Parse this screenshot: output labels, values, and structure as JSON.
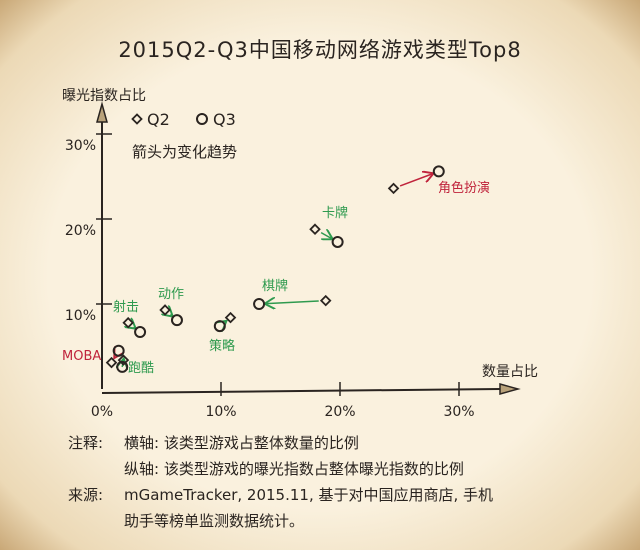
{
  "title": "2015Q2-Q3中国移动网络游戏类型Top8",
  "chart_data": {
    "type": "scatter",
    "title": "2015Q2-Q3中国移动网络游戏类型Top8",
    "xlabel": "数量占比",
    "ylabel": "曝光指数占比",
    "xlim": [
      0,
      35
    ],
    "ylim": [
      0,
      35
    ],
    "x_ticks": [
      "0%",
      "10%",
      "20%",
      "30%"
    ],
    "y_ticks": [
      "10%",
      "20%",
      "30%"
    ],
    "grid": false,
    "legend": {
      "position": "top-left",
      "entries": [
        "Q2",
        "Q3"
      ],
      "note": "箭头为变化趋势"
    },
    "series": [
      {
        "name": "Q2",
        "marker": "diamond"
      },
      {
        "name": "Q3",
        "marker": "circle"
      }
    ],
    "points": [
      {
        "category": "角色扮演",
        "q2": [
          24.5,
          23.6
        ],
        "q3": [
          28.3,
          25.6
        ],
        "color": "#c0243c"
      },
      {
        "category": "卡牌",
        "q2": [
          17.9,
          18.8
        ],
        "q3": [
          19.8,
          17.3
        ],
        "color": "#2e9a4e"
      },
      {
        "category": "棋牌",
        "q2": [
          18.8,
          10.4
        ],
        "q3": [
          13.2,
          10.0
        ],
        "color": "#2e9a4e"
      },
      {
        "category": "策略",
        "q2": [
          10.8,
          8.4
        ],
        "q3": [
          9.9,
          7.4
        ],
        "color": "#2e9a4e"
      },
      {
        "category": "动作",
        "q2": [
          5.3,
          9.3
        ],
        "q3": [
          6.3,
          8.1
        ],
        "color": "#2e9a4e"
      },
      {
        "category": "射击",
        "q2": [
          2.2,
          7.8
        ],
        "q3": [
          3.2,
          6.7
        ],
        "color": "#2e9a4e"
      },
      {
        "category": "MOBA",
        "q2": [
          0.8,
          3.1
        ],
        "q3": [
          1.4,
          4.5
        ],
        "color": "#c0243c"
      },
      {
        "category": "跑酷",
        "q2": [
          1.8,
          3.4
        ],
        "q3": [
          1.7,
          2.6
        ],
        "color": "#2e9a4e"
      }
    ]
  },
  "notes": {
    "label1": "注释:",
    "x_axis_note": "横轴:  该类型游戏占整体数量的比例",
    "y_axis_note": "纵轴:  该类型游戏的曝光指数占整体曝光指数的比例",
    "label2": "来源:",
    "source_line1": "mGameTracker, 2015.11, 基于对中国应用商店, 手机",
    "source_line2": "助手等榜单监测数据统计。"
  }
}
